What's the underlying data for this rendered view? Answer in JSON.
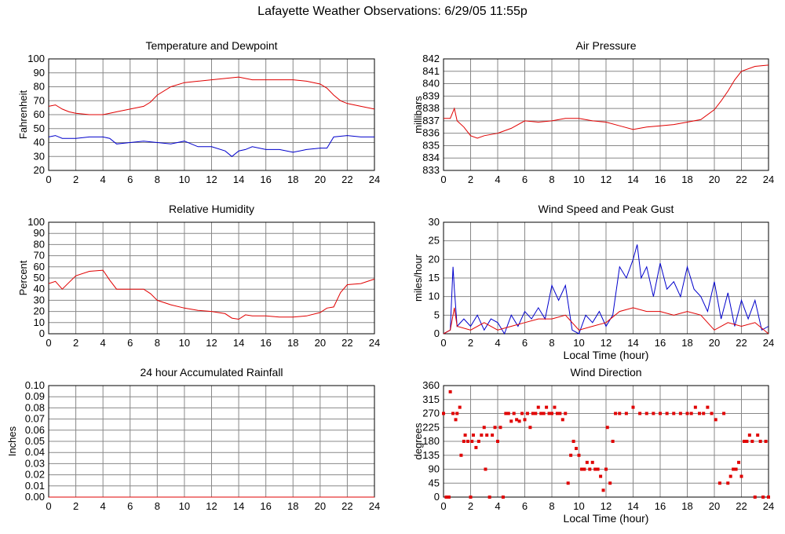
{
  "page_title": "Lafayette Weather Observations: 6/29/05 11:55p",
  "colors": {
    "red": "#e00000",
    "blue": "#0000cc",
    "grid": "#888888"
  },
  "chart_data": [
    {
      "type": "line",
      "title": "Temperature and Dewpoint",
      "xlabel": "",
      "ylabel": "Fahrenheit",
      "xlim": [
        0,
        24
      ],
      "ylim": [
        20,
        100
      ],
      "xticks": [
        "0",
        "2",
        "4",
        "6",
        "8",
        "10",
        "12",
        "14",
        "16",
        "18",
        "20",
        "22",
        "24"
      ],
      "yticks": [
        "20",
        "30",
        "40",
        "50",
        "60",
        "70",
        "80",
        "90",
        "100"
      ],
      "grid": true,
      "series": [
        {
          "color": "#e00000",
          "x": [
            0,
            0.5,
            1,
            1.5,
            2,
            3,
            4,
            4.5,
            5,
            6,
            7,
            7.5,
            8,
            9,
            10,
            11,
            12,
            13,
            14,
            15,
            16,
            17,
            18,
            19,
            20,
            20.5,
            21,
            21.5,
            22,
            23,
            24
          ],
          "y": [
            66,
            67,
            64,
            62,
            61,
            60,
            60,
            61,
            62,
            64,
            66,
            69,
            74,
            80,
            83,
            84,
            85,
            86,
            87,
            85,
            85,
            85,
            85,
            84,
            82,
            79,
            74,
            70,
            68,
            66,
            64
          ]
        },
        {
          "color": "#0000cc",
          "x": [
            0,
            0.5,
            1,
            2,
            3,
            4,
            4.5,
            5,
            6,
            7,
            8,
            9,
            10,
            11,
            12,
            13,
            13.5,
            14,
            14.5,
            15,
            16,
            17,
            18,
            19,
            20,
            20.5,
            21,
            22,
            23,
            24
          ],
          "y": [
            44,
            45,
            43,
            43,
            44,
            44,
            43,
            39,
            40,
            41,
            40,
            39,
            41,
            37,
            37,
            34,
            30,
            34,
            35,
            37,
            35,
            35,
            33,
            35,
            36,
            36,
            44,
            45,
            44,
            44
          ]
        }
      ]
    },
    {
      "type": "line",
      "title": "Air Pressure",
      "xlabel": "",
      "ylabel": "millibars",
      "xlim": [
        0,
        24
      ],
      "ylim": [
        833,
        842
      ],
      "xticks": [
        "0",
        "2",
        "4",
        "6",
        "8",
        "10",
        "12",
        "14",
        "16",
        "18",
        "20",
        "22",
        "24"
      ],
      "yticks": [
        "833",
        "834",
        "835",
        "836",
        "837",
        "838",
        "839",
        "840",
        "841",
        "842"
      ],
      "grid": true,
      "series": [
        {
          "color": "#e00000",
          "x": [
            0,
            0.5,
            0.8,
            1,
            1.5,
            2,
            2.5,
            3,
            4,
            5,
            6,
            7,
            8,
            9,
            10,
            11,
            12,
            13,
            14,
            15,
            16,
            17,
            18,
            19,
            20,
            20.5,
            21,
            21.5,
            22,
            23,
            24
          ],
          "y": [
            837.2,
            837.2,
            838,
            837,
            836.5,
            835.8,
            835.6,
            835.8,
            836,
            836.4,
            837,
            836.9,
            837,
            837.2,
            837.2,
            837,
            836.9,
            836.6,
            836.3,
            836.5,
            836.6,
            836.7,
            836.9,
            837.1,
            837.9,
            838.6,
            839.4,
            840.3,
            841,
            841.4,
            841.5
          ]
        }
      ]
    },
    {
      "type": "line",
      "title": "Relative Humidity",
      "xlabel": "",
      "ylabel": "Percent",
      "xlim": [
        0,
        24
      ],
      "ylim": [
        0,
        100
      ],
      "xticks": [
        "0",
        "2",
        "4",
        "6",
        "8",
        "10",
        "12",
        "14",
        "16",
        "18",
        "20",
        "22",
        "24"
      ],
      "yticks": [
        "0",
        "10",
        "20",
        "30",
        "40",
        "50",
        "60",
        "70",
        "80",
        "90",
        "100"
      ],
      "grid": true,
      "series": [
        {
          "color": "#e00000",
          "x": [
            0,
            0.5,
            1,
            1.5,
            2,
            3,
            4,
            4.5,
            5,
            6,
            7,
            7.5,
            8,
            9,
            10,
            11,
            12,
            13,
            13.5,
            14,
            14.5,
            15,
            16,
            17,
            18,
            19,
            20,
            20.5,
            21,
            21.5,
            22,
            23,
            24
          ],
          "y": [
            45,
            47,
            40,
            46,
            52,
            56,
            57,
            48,
            40,
            40,
            40,
            36,
            30,
            26,
            23,
            21,
            20,
            18,
            14,
            13,
            17,
            16,
            16,
            15,
            15,
            16,
            19,
            23,
            24,
            37,
            44,
            45,
            49
          ]
        }
      ]
    },
    {
      "type": "line",
      "title": "Wind Speed and Peak Gust",
      "xlabel": "Local Time (hour)",
      "ylabel": "miles/hour",
      "xlim": [
        0,
        24
      ],
      "ylim": [
        0,
        30
      ],
      "xticks": [
        "0",
        "2",
        "4",
        "6",
        "8",
        "10",
        "12",
        "14",
        "16",
        "18",
        "20",
        "22",
        "24"
      ],
      "yticks": [
        "0",
        "5",
        "10",
        "15",
        "20",
        "25",
        "30"
      ],
      "grid": true,
      "series": [
        {
          "color": "#0000cc",
          "x": [
            0,
            0.5,
            0.7,
            0.8,
            1,
            1.5,
            2,
            2.5,
            3,
            3.5,
            4,
            4.5,
            5,
            5.5,
            6,
            6.5,
            7,
            7.5,
            8,
            8.5,
            9,
            9.5,
            10,
            10.5,
            11,
            11.5,
            12,
            12.5,
            13,
            13.5,
            14,
            14.3,
            14.6,
            15,
            15.5,
            16,
            16.5,
            17,
            17.5,
            18,
            18.5,
            19,
            19.5,
            20,
            20.5,
            21,
            21.5,
            22,
            22.5,
            23,
            23.5,
            24
          ],
          "y": [
            0,
            1,
            18,
            12,
            2,
            4,
            2,
            5,
            1,
            4,
            3,
            0,
            5,
            2,
            6,
            4,
            7,
            4,
            13,
            9,
            13,
            1,
            0,
            5,
            3,
            6,
            2,
            5,
            18,
            15,
            20,
            24,
            15,
            18,
            10,
            19,
            12,
            14,
            10,
            18,
            12,
            10,
            6,
            14,
            4,
            11,
            2,
            9,
            4,
            9,
            1,
            2
          ]
        },
        {
          "color": "#e00000",
          "x": [
            0,
            0.5,
            0.8,
            1,
            2,
            3,
            4,
            5,
            6,
            7,
            8,
            9,
            10,
            11,
            12,
            13,
            14,
            15,
            16,
            17,
            18,
            19,
            20,
            21,
            22,
            23,
            24
          ],
          "y": [
            0,
            1,
            7,
            2,
            1,
            3,
            1,
            2,
            3,
            4,
            4,
            5,
            1,
            2,
            3,
            6,
            7,
            6,
            6,
            5,
            6,
            5,
            1,
            3,
            2,
            3,
            0
          ]
        }
      ]
    },
    {
      "type": "line",
      "title": "24 hour Accumulated Rainfall",
      "xlabel": "",
      "ylabel": "Inches",
      "xlim": [
        0,
        24
      ],
      "ylim": [
        0,
        0.1
      ],
      "xticks": [
        "0",
        "2",
        "4",
        "6",
        "8",
        "10",
        "12",
        "14",
        "16",
        "18",
        "20",
        "22",
        "24"
      ],
      "yticks": [
        "0.00",
        "0.01",
        "0.02",
        "0.03",
        "0.04",
        "0.05",
        "0.06",
        "0.07",
        "0.08",
        "0.09",
        "0.10"
      ],
      "grid": true,
      "series": [
        {
          "color": "#e00000",
          "x": [
            0,
            24
          ],
          "y": [
            0,
            0
          ]
        }
      ]
    },
    {
      "type": "scatter",
      "title": "Wind Direction",
      "xlabel": "Local Time (hour)",
      "ylabel": "degrees",
      "xlim": [
        0,
        24
      ],
      "ylim": [
        0,
        360
      ],
      "xticks": [
        "0",
        "2",
        "4",
        "6",
        "8",
        "10",
        "12",
        "14",
        "16",
        "18",
        "20",
        "22",
        "24"
      ],
      "yticks": [
        "0",
        "45",
        "90",
        "135",
        "180",
        "225",
        "270",
        "315",
        "360"
      ],
      "grid": true,
      "series": [
        {
          "color": "#e00000",
          "x": [
            0,
            0.2,
            0.4,
            0.5,
            0.7,
            0.9,
            1.0,
            1.2,
            1.3,
            1.5,
            1.6,
            1.8,
            2.0,
            2.1,
            2.2,
            2.4,
            2.6,
            2.8,
            3.0,
            3.1,
            3.2,
            3.4,
            3.6,
            3.8,
            4.0,
            4.2,
            4.4,
            4.6,
            4.8,
            5.0,
            5.2,
            5.4,
            5.6,
            5.8,
            6.0,
            6.2,
            6.4,
            6.6,
            6.8,
            7.0,
            7.2,
            7.4,
            7.6,
            7.8,
            8.0,
            8.2,
            8.4,
            8.6,
            8.8,
            9.0,
            9.2,
            9.4,
            9.6,
            9.8,
            10.0,
            10.2,
            10.4,
            10.6,
            10.8,
            11.0,
            11.2,
            11.4,
            11.6,
            11.8,
            12.0,
            12.1,
            12.3,
            12.5,
            12.7,
            13.0,
            13.5,
            14.0,
            14.5,
            15.0,
            15.5,
            16.0,
            16.5,
            17.0,
            17.5,
            18.0,
            18.3,
            18.6,
            18.9,
            19.2,
            19.5,
            19.8,
            20.1,
            20.4,
            20.7,
            21.0,
            21.2,
            21.4,
            21.6,
            21.8,
            22.0,
            22.2,
            22.4,
            22.6,
            22.8,
            23.0,
            23.2,
            23.4,
            23.6,
            23.8,
            24.0
          ],
          "y": [
            270,
            0,
            0,
            340,
            270,
            250,
            270,
            290,
            135,
            180,
            200,
            180,
            0,
            180,
            200,
            160,
            180,
            200,
            225,
            90,
            200,
            0,
            200,
            225,
            180,
            225,
            0,
            270,
            270,
            245,
            270,
            250,
            245,
            270,
            250,
            270,
            225,
            270,
            270,
            290,
            270,
            270,
            290,
            270,
            270,
            290,
            270,
            270,
            250,
            270,
            45,
            135,
            180,
            157,
            135,
            90,
            90,
            112,
            90,
            112,
            90,
            90,
            67,
            22,
            90,
            225,
            45,
            180,
            270,
            270,
            270,
            290,
            270,
            270,
            270,
            270,
            270,
            270,
            270,
            270,
            270,
            290,
            270,
            270,
            290,
            270,
            250,
            45,
            270,
            45,
            67,
            90,
            90,
            112,
            67,
            180,
            180,
            200,
            180,
            0,
            200,
            180,
            0,
            180,
            0
          ]
        }
      ]
    }
  ]
}
